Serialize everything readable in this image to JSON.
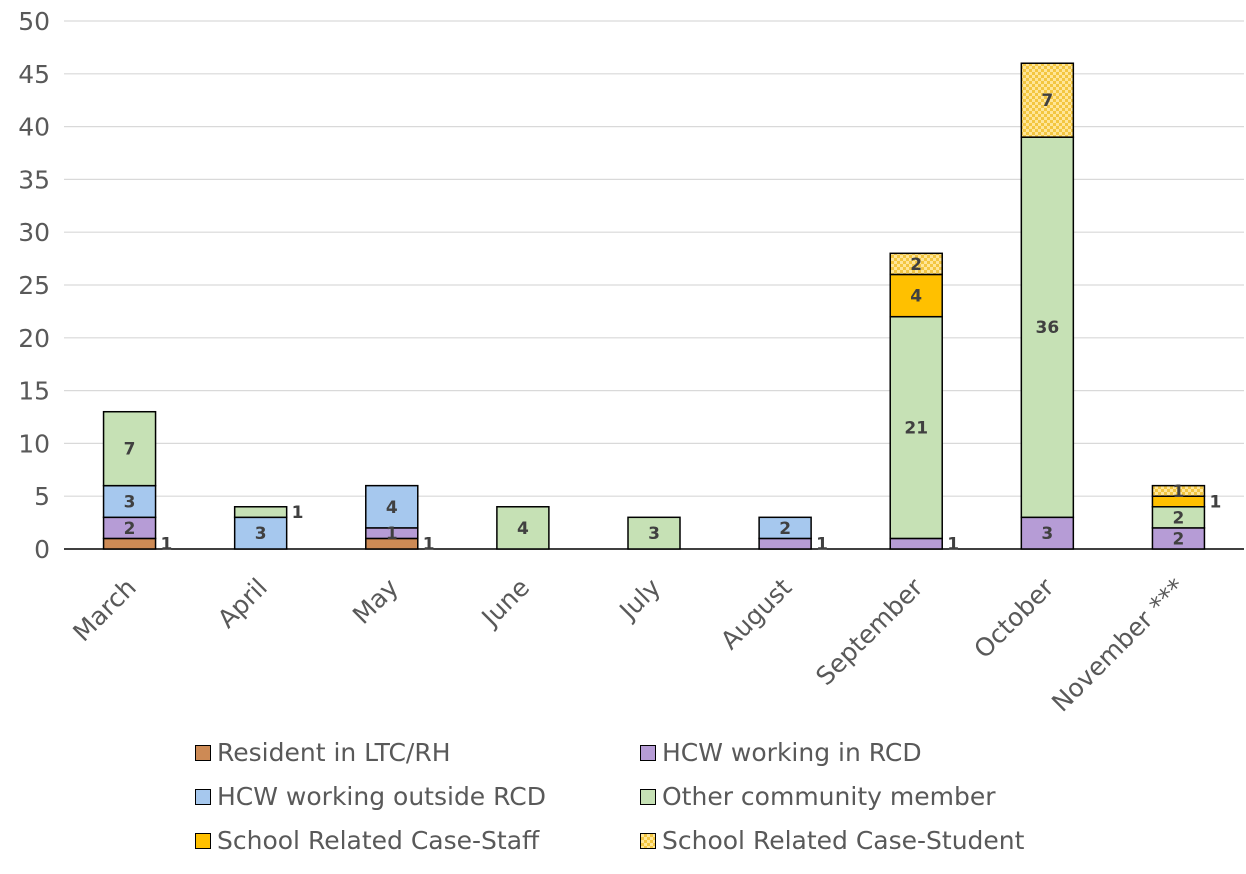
{
  "chart_data": {
    "type": "bar",
    "stacked": true,
    "categories": [
      "March",
      "April",
      "May",
      "June",
      "July",
      "August",
      "September",
      "October",
      "November ***"
    ],
    "series": [
      {
        "name": "Resident in LTC/RH",
        "color": "#cd8a55",
        "fill": "solid",
        "values": [
          1,
          0,
          1,
          0,
          0,
          0,
          0,
          0,
          0
        ]
      },
      {
        "name": "HCW working in RCD",
        "color": "#b69cd6",
        "fill": "solid",
        "values": [
          2,
          0,
          1,
          0,
          0,
          1,
          1,
          3,
          2
        ]
      },
      {
        "name": "HCW working outside RCD",
        "color": "#a6c8ee",
        "fill": "solid",
        "values": [
          3,
          3,
          4,
          0,
          0,
          2,
          0,
          0,
          0
        ]
      },
      {
        "name": "Other community member",
        "color": "#c6e1b5",
        "fill": "solid",
        "values": [
          7,
          1,
          0,
          4,
          3,
          0,
          21,
          36,
          2
        ]
      },
      {
        "name": "School Related Case-Staff",
        "color": "#ffc000",
        "fill": "solid",
        "values": [
          0,
          0,
          0,
          0,
          0,
          0,
          4,
          0,
          1
        ]
      },
      {
        "name": "School Related Case-Student",
        "color": "#ffe699",
        "fill": "checker",
        "values": [
          0,
          0,
          0,
          0,
          0,
          0,
          2,
          7,
          1
        ]
      }
    ],
    "data_labels": [
      {
        "category": 0,
        "series": 0,
        "text": "1",
        "placement": "right"
      },
      {
        "category": 0,
        "series": 1,
        "text": "2",
        "placement": "inside"
      },
      {
        "category": 0,
        "series": 2,
        "text": "3",
        "placement": "inside"
      },
      {
        "category": 0,
        "series": 3,
        "text": "7",
        "placement": "inside"
      },
      {
        "category": 1,
        "series": 2,
        "text": "3",
        "placement": "inside"
      },
      {
        "category": 1,
        "series": 3,
        "text": "1",
        "placement": "right"
      },
      {
        "category": 2,
        "series": 0,
        "text": "1",
        "placement": "right"
      },
      {
        "category": 2,
        "series": 1,
        "text": "1",
        "placement": "inside"
      },
      {
        "category": 2,
        "series": 2,
        "text": "4",
        "placement": "inside"
      },
      {
        "category": 3,
        "series": 3,
        "text": "4",
        "placement": "inside"
      },
      {
        "category": 4,
        "series": 3,
        "text": "3",
        "placement": "inside"
      },
      {
        "category": 5,
        "series": 1,
        "text": "1",
        "placement": "right"
      },
      {
        "category": 5,
        "series": 2,
        "text": "2",
        "placement": "inside"
      },
      {
        "category": 6,
        "series": 1,
        "text": "1",
        "placement": "right"
      },
      {
        "category": 6,
        "series": 3,
        "text": "21",
        "placement": "inside"
      },
      {
        "category": 6,
        "series": 4,
        "text": "4",
        "placement": "inside"
      },
      {
        "category": 6,
        "series": 5,
        "text": "2",
        "placement": "inside"
      },
      {
        "category": 7,
        "series": 1,
        "text": "3",
        "placement": "inside"
      },
      {
        "category": 7,
        "series": 3,
        "text": "36",
        "placement": "inside"
      },
      {
        "category": 7,
        "series": 5,
        "text": "7",
        "placement": "inside"
      },
      {
        "category": 8,
        "series": 1,
        "text": "2",
        "placement": "inside"
      },
      {
        "category": 8,
        "series": 3,
        "text": "2",
        "placement": "inside"
      },
      {
        "category": 8,
        "series": 4,
        "text": "1",
        "placement": "right"
      },
      {
        "category": 8,
        "series": 5,
        "text": "1",
        "placement": "inside"
      }
    ],
    "ylim": [
      0,
      50
    ],
    "yticks": [
      0,
      5,
      10,
      15,
      20,
      25,
      30,
      35,
      40,
      45,
      50
    ],
    "grid": true,
    "legend_position": "bottom",
    "title": "",
    "xlabel": "",
    "ylabel": ""
  }
}
